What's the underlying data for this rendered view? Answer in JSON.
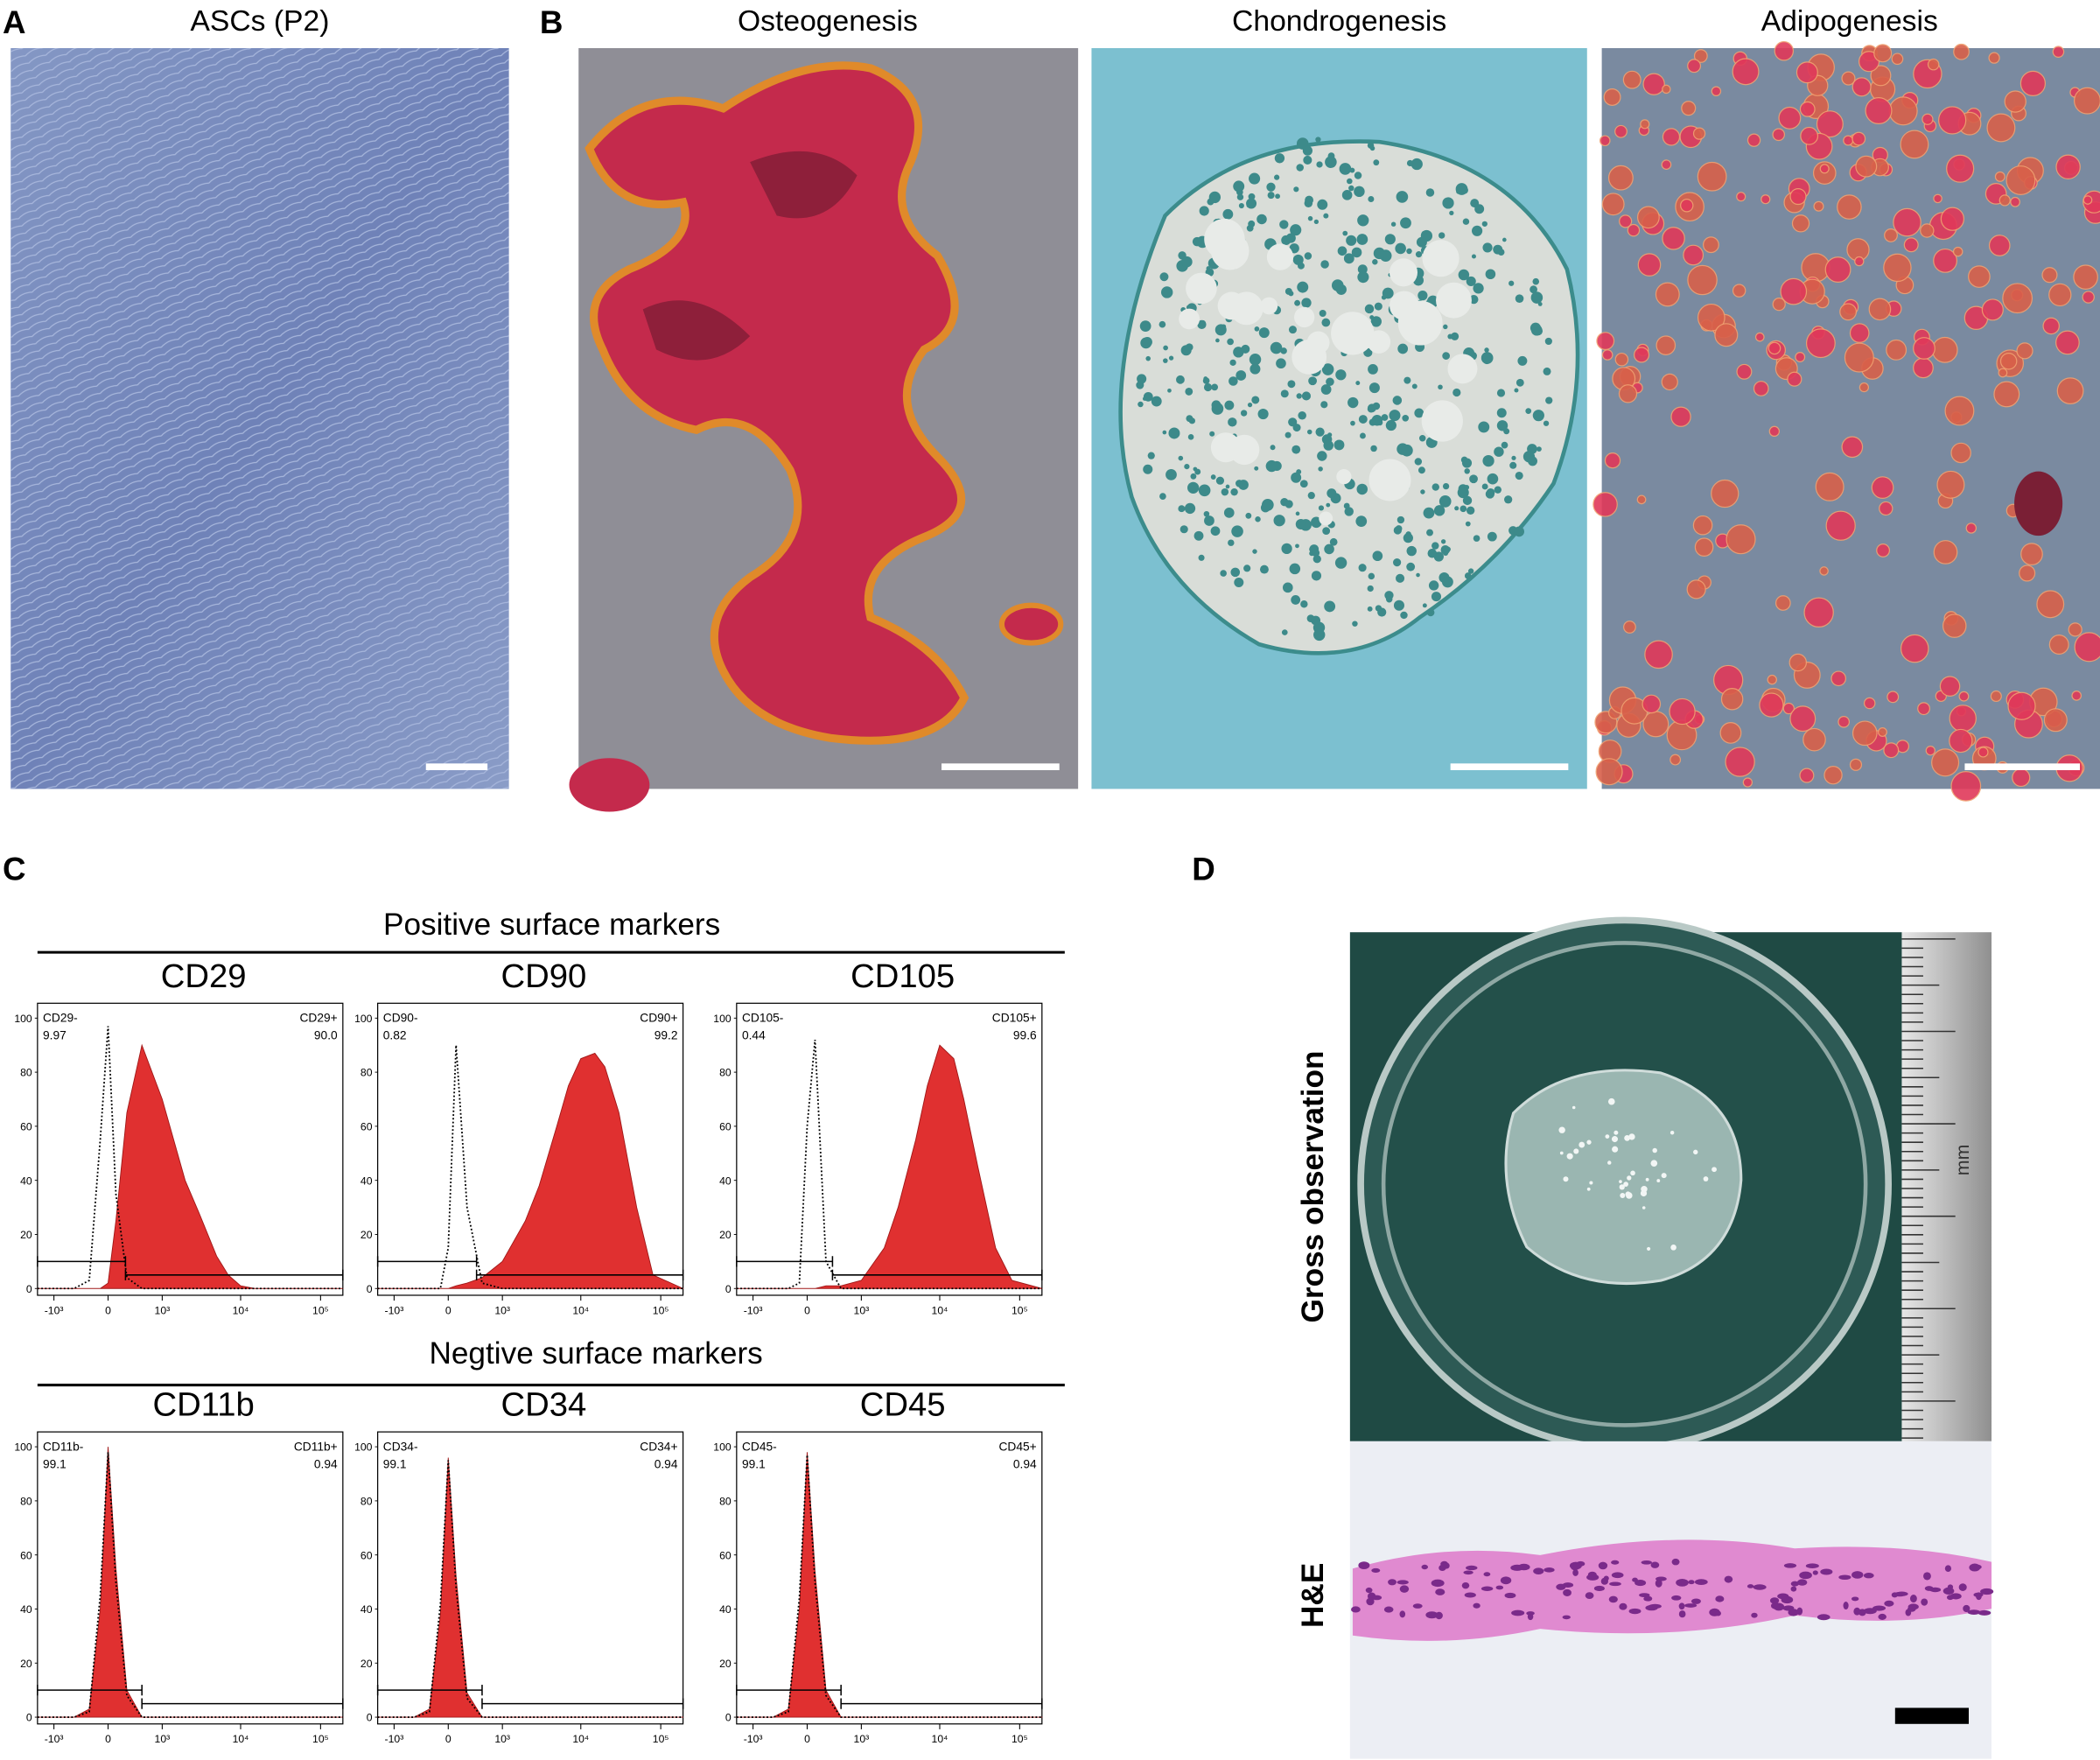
{
  "panels": {
    "A": {
      "label": "A",
      "title": "ASCs (P2)"
    },
    "B": {
      "label": "B",
      "titles": [
        "Osteogenesis",
        "Chondrogenesis",
        "Adipogenesis"
      ]
    },
    "C": {
      "label": "C",
      "headers": [
        "Positive surface markers",
        "Negtive surface markers"
      ]
    },
    "D": {
      "label": "D",
      "rows": [
        "Gross observation",
        "H&E"
      ],
      "ruler_unit": "mm"
    }
  },
  "chart_data": [
    {
      "type": "area",
      "title": "CD29",
      "x": [
        -1650,
        -1000,
        -500,
        -250,
        -100,
        0,
        100,
        250,
        500,
        1000,
        2000,
        3000,
        5000,
        7000,
        10000,
        15000,
        20000,
        30000,
        50000,
        80000,
        190000
      ],
      "series": [
        {
          "color": "#e03030",
          "values": [
            0,
            0,
            0,
            0,
            0,
            2,
            25,
            65,
            90,
            70,
            40,
            28,
            12,
            5,
            1,
            0,
            0,
            0,
            0,
            0,
            0
          ]
        },
        {
          "color": "#000000",
          "style": "dotted",
          "values": [
            0,
            0,
            0,
            3,
            55,
            97,
            35,
            4,
            0,
            0,
            0,
            0,
            0,
            0,
            0,
            0,
            0,
            0,
            0,
            0,
            0
          ]
        }
      ],
      "xlim": [
        -1650,
        190000
      ],
      "xticks": [
        {
          "value": -1000,
          "label": "-10³"
        },
        0,
        {
          "value": 1000,
          "label": "10³"
        },
        {
          "value": 10000,
          "label": "10⁴"
        },
        {
          "value": 100000,
          "label": "10⁵"
        }
      ],
      "ylim": [
        -2.5,
        105.5
      ],
      "yticks": [
        0,
        20,
        40,
        60,
        80,
        100
      ],
      "gates": [
        {
          "name": "CD29-",
          "value": 9.97,
          "value_label": "9.97",
          "range": [
            -1650,
            230
          ],
          "height": 10
        },
        {
          "name": "CD29+",
          "value": 90,
          "value_label": "90.0",
          "range": [
            230,
            190000
          ],
          "height": 5
        }
      ]
    },
    {
      "type": "area",
      "title": "CD90",
      "x": [
        -1650,
        -1000,
        -500,
        -250,
        -100,
        0,
        100,
        250,
        500,
        1000,
        2000,
        3000,
        5000,
        7000,
        10000,
        15000,
        20000,
        30000,
        50000,
        80000,
        190000
      ],
      "series": [
        {
          "color": "#e03030",
          "values": [
            0,
            0,
            0,
            0,
            0,
            0,
            1,
            2,
            4,
            10,
            25,
            38,
            60,
            75,
            85,
            87,
            82,
            65,
            30,
            5,
            0
          ]
        },
        {
          "color": "#000000",
          "style": "dotted",
          "values": [
            0,
            0,
            0,
            0,
            0,
            15,
            90,
            30,
            2,
            0,
            0,
            0,
            0,
            0,
            0,
            0,
            0,
            0,
            0,
            0,
            0
          ]
        }
      ],
      "xlim": [
        -1650,
        190000
      ],
      "xticks": [
        {
          "value": -1000,
          "label": "-10³"
        },
        0,
        {
          "value": 1000,
          "label": "10³"
        },
        {
          "value": 10000,
          "label": "10⁴"
        },
        {
          "value": 100000,
          "label": "10⁵"
        }
      ],
      "ylim": [
        -2.5,
        105.5
      ],
      "yticks": [
        0,
        20,
        40,
        60,
        80,
        100
      ],
      "gates": [
        {
          "name": "CD90-",
          "value": 0.82,
          "value_label": "0.82",
          "range": [
            -1650,
            400
          ],
          "height": 10
        },
        {
          "name": "CD90+",
          "value": 99.2,
          "value_label": "99.2",
          "range": [
            400,
            190000
          ],
          "height": 5
        }
      ]
    },
    {
      "type": "area",
      "title": "CD105",
      "x": [
        -1650,
        -1000,
        -500,
        -250,
        -100,
        0,
        100,
        250,
        500,
        1000,
        2000,
        3000,
        5000,
        7000,
        10000,
        15000,
        20000,
        30000,
        50000,
        80000,
        190000
      ],
      "series": [
        {
          "color": "#e03030",
          "values": [
            0,
            0,
            0,
            0,
            0,
            0,
            0,
            1,
            1,
            3,
            15,
            30,
            55,
            75,
            90,
            85,
            70,
            45,
            15,
            3,
            0
          ]
        },
        {
          "color": "#000000",
          "style": "dotted",
          "values": [
            0,
            0,
            0,
            0,
            2,
            60,
            92,
            10,
            0,
            0,
            0,
            0,
            0,
            0,
            0,
            0,
            0,
            0,
            0,
            0,
            0
          ]
        }
      ],
      "xlim": [
        -1650,
        190000
      ],
      "xticks": [
        {
          "value": -1000,
          "label": "-10³"
        },
        0,
        {
          "value": 1000,
          "label": "10³"
        },
        {
          "value": 10000,
          "label": "10⁴"
        },
        {
          "value": 100000,
          "label": "10⁵"
        }
      ],
      "ylim": [
        -2.5,
        105.5
      ],
      "yticks": [
        0,
        20,
        40,
        60,
        80,
        100
      ],
      "gates": [
        {
          "name": "CD105-",
          "value": 0.44,
          "value_label": "0.44",
          "range": [
            -1650,
            350
          ],
          "height": 10
        },
        {
          "name": "CD105+",
          "value": 99.6,
          "value_label": "99.6",
          "range": [
            350,
            190000
          ],
          "height": 5
        }
      ]
    },
    {
      "type": "area",
      "title": "CD11b",
      "x": [
        -1650,
        -1000,
        -500,
        -250,
        -100,
        0,
        100,
        250,
        500,
        1000,
        2000,
        3000,
        5000,
        7000,
        10000,
        15000,
        20000,
        30000,
        50000,
        80000,
        190000
      ],
      "series": [
        {
          "color": "#e03030",
          "values": [
            0,
            0,
            0,
            3,
            40,
            100,
            55,
            10,
            0,
            0,
            0,
            0,
            0,
            0,
            0,
            0,
            0,
            0,
            0,
            0,
            0
          ]
        },
        {
          "color": "#000000",
          "style": "dotted",
          "values": [
            0,
            0,
            0,
            2,
            45,
            98,
            50,
            8,
            0,
            0,
            0,
            0,
            0,
            0,
            0,
            0,
            0,
            0,
            0,
            0,
            0
          ]
        }
      ],
      "xlim": [
        -1650,
        190000
      ],
      "xticks": [
        {
          "value": -1000,
          "label": "-10³"
        },
        0,
        {
          "value": 1000,
          "label": "10³"
        },
        {
          "value": 10000,
          "label": "10⁴"
        },
        {
          "value": 100000,
          "label": "10⁵"
        }
      ],
      "ylim": [
        -2.5,
        105.5
      ],
      "yticks": [
        0,
        20,
        40,
        60,
        80,
        100
      ],
      "gates": [
        {
          "name": "CD11b-",
          "value": 99.1,
          "value_label": "99.1",
          "range": [
            -1650,
            500
          ],
          "height": 10
        },
        {
          "name": "CD11b+",
          "value": 0.94,
          "value_label": "0.94",
          "range": [
            500,
            190000
          ],
          "height": 5
        }
      ]
    },
    {
      "type": "area",
      "title": "CD34",
      "x": [
        -1650,
        -1000,
        -500,
        -250,
        -100,
        0,
        100,
        250,
        500,
        1000,
        2000,
        3000,
        5000,
        7000,
        10000,
        15000,
        20000,
        30000,
        50000,
        80000,
        190000
      ],
      "series": [
        {
          "color": "#e03030",
          "values": [
            0,
            0,
            0,
            3,
            38,
            96,
            52,
            9,
            0,
            0,
            0,
            0,
            0,
            0,
            0,
            0,
            0,
            0,
            0,
            0,
            0
          ]
        },
        {
          "color": "#000000",
          "style": "dotted",
          "values": [
            0,
            0,
            0,
            2,
            42,
            95,
            48,
            7,
            0,
            0,
            0,
            0,
            0,
            0,
            0,
            0,
            0,
            0,
            0,
            0,
            0
          ]
        }
      ],
      "xlim": [
        -1650,
        190000
      ],
      "xticks": [
        {
          "value": -1000,
          "label": "-10³"
        },
        0,
        {
          "value": 1000,
          "label": "10³"
        },
        {
          "value": 10000,
          "label": "10⁴"
        },
        {
          "value": 100000,
          "label": "10⁵"
        }
      ],
      "ylim": [
        -2.5,
        105.5
      ],
      "yticks": [
        0,
        20,
        40,
        60,
        80,
        100
      ],
      "gates": [
        {
          "name": "CD34-",
          "value": 99.1,
          "value_label": "99.1",
          "range": [
            -1650,
            500
          ],
          "height": 10
        },
        {
          "name": "CD34+",
          "value": 0.94,
          "value_label": "0.94",
          "range": [
            500,
            190000
          ],
          "height": 5
        }
      ]
    },
    {
      "type": "area",
      "title": "CD45",
      "x": [
        -1650,
        -1000,
        -500,
        -250,
        -100,
        0,
        100,
        250,
        500,
        1000,
        2000,
        3000,
        5000,
        7000,
        10000,
        15000,
        20000,
        30000,
        50000,
        80000,
        190000
      ],
      "series": [
        {
          "color": "#e03030",
          "values": [
            0,
            0,
            0,
            3,
            40,
            98,
            54,
            10,
            0,
            0,
            0,
            0,
            0,
            0,
            0,
            0,
            0,
            0,
            0,
            0,
            0
          ]
        },
        {
          "color": "#000000",
          "style": "dotted",
          "values": [
            0,
            0,
            0,
            2,
            44,
            97,
            50,
            8,
            0,
            0,
            0,
            0,
            0,
            0,
            0,
            0,
            0,
            0,
            0,
            0,
            0
          ]
        }
      ],
      "xlim": [
        -1650,
        190000
      ],
      "xticks": [
        {
          "value": -1000,
          "label": "-10³"
        },
        0,
        {
          "value": 1000,
          "label": "10³"
        },
        {
          "value": 10000,
          "label": "10⁴"
        },
        {
          "value": 100000,
          "label": "10⁵"
        }
      ],
      "ylim": [
        -2.5,
        105.5
      ],
      "yticks": [
        0,
        20,
        40,
        60,
        80,
        100
      ],
      "gates": [
        {
          "name": "CD45-",
          "value": 99.1,
          "value_label": "99.1",
          "range": [
            -1650,
            500
          ],
          "height": 10
        },
        {
          "name": "CD45+",
          "value": 0.94,
          "value_label": "0.94",
          "range": [
            500,
            190000
          ],
          "height": 5
        }
      ]
    }
  ]
}
